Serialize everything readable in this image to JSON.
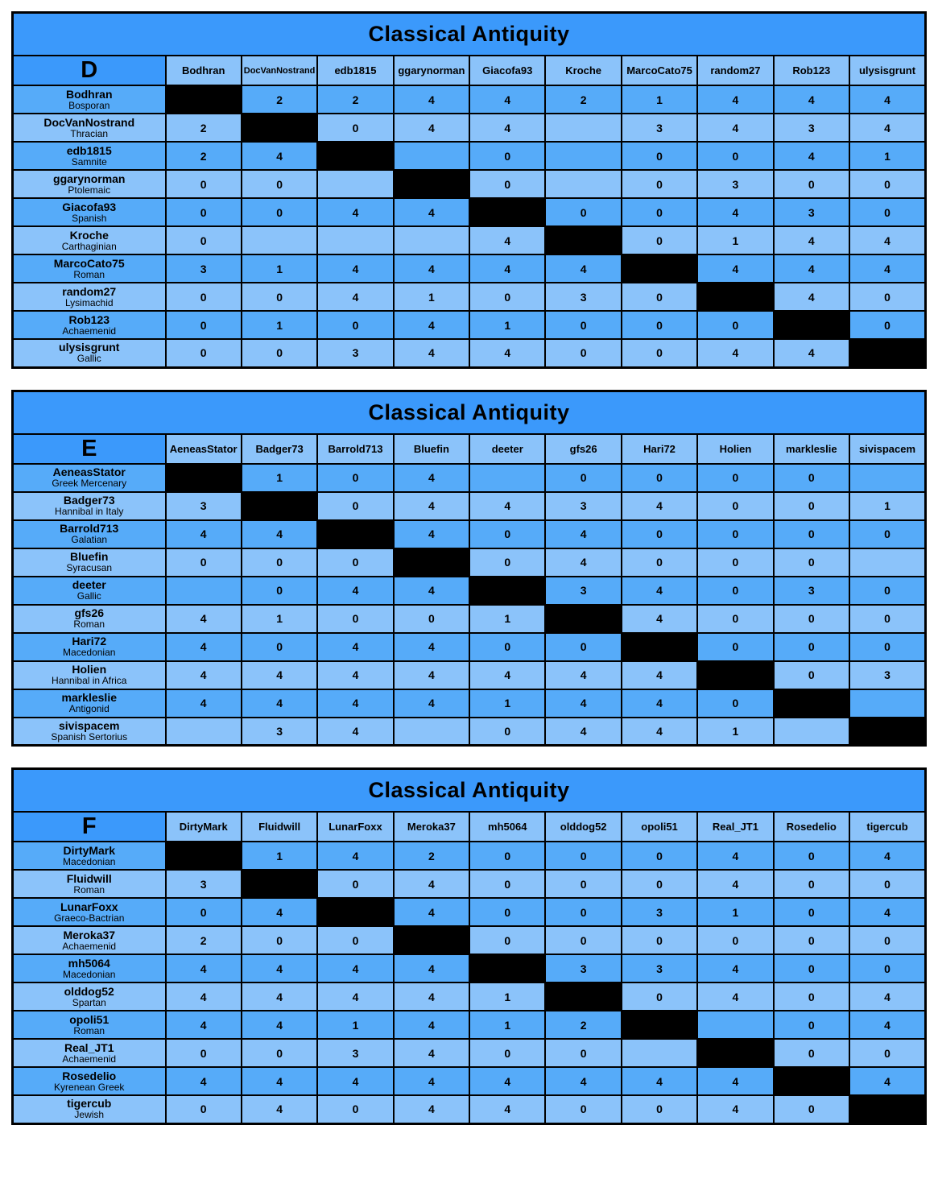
{
  "tables": [
    {
      "title": "Classical Antiquity",
      "group": "D",
      "columns": [
        "Bodhran",
        "DocVanNostrand",
        "edb1815",
        "ggarynorman",
        "Giacofa93",
        "Kroche",
        "MarcoCato75",
        "random27",
        "Rob123",
        "ulysisgrunt"
      ],
      "rows": [
        {
          "player": "Bodhran",
          "faction": "Bosporan",
          "scores": [
            null,
            "2",
            "2",
            "4",
            "4",
            "2",
            "1",
            "4",
            "4",
            "4"
          ]
        },
        {
          "player": "DocVanNostrand",
          "faction": "Thracian",
          "scores": [
            "2",
            null,
            "0",
            "4",
            "4",
            "",
            "3",
            "4",
            "3",
            "4"
          ]
        },
        {
          "player": "edb1815",
          "faction": "Samnite",
          "scores": [
            "2",
            "4",
            null,
            "",
            "0",
            "",
            "0",
            "0",
            "4",
            "1"
          ]
        },
        {
          "player": "ggarynorman",
          "faction": "Ptolemaic",
          "scores": [
            "0",
            "0",
            "",
            null,
            "0",
            "",
            "0",
            "3",
            "0",
            "0"
          ]
        },
        {
          "player": "Giacofa93",
          "faction": "Spanish",
          "scores": [
            "0",
            "0",
            "4",
            "4",
            null,
            "0",
            "0",
            "4",
            "3",
            "0"
          ]
        },
        {
          "player": "Kroche",
          "faction": "Carthaginian",
          "scores": [
            "0",
            "",
            "",
            "",
            "4",
            null,
            "0",
            "1",
            "4",
            "4"
          ]
        },
        {
          "player": "MarcoCato75",
          "faction": "Roman",
          "scores": [
            "3",
            "1",
            "4",
            "4",
            "4",
            "4",
            null,
            "4",
            "4",
            "4"
          ]
        },
        {
          "player": "random27",
          "faction": "Lysimachid",
          "scores": [
            "0",
            "0",
            "4",
            "1",
            "0",
            "3",
            "0",
            null,
            "4",
            "0"
          ]
        },
        {
          "player": "Rob123",
          "faction": "Achaemenid",
          "scores": [
            "0",
            "1",
            "0",
            "4",
            "1",
            "0",
            "0",
            "0",
            null,
            "0"
          ]
        },
        {
          "player": "ulysisgrunt",
          "faction": "Gallic",
          "scores": [
            "0",
            "0",
            "3",
            "4",
            "4",
            "0",
            "0",
            "4",
            "4",
            null
          ]
        }
      ]
    },
    {
      "title": "Classical Antiquity",
      "group": "E",
      "columns": [
        "AeneasStator",
        "Badger73",
        "Barrold713",
        "Bluefin",
        "deeter",
        "gfs26",
        "Hari72",
        "Holien",
        "markleslie",
        "sivispacem"
      ],
      "rows": [
        {
          "player": "AeneasStator",
          "faction": "Greek Mercenary",
          "scores": [
            null,
            "1",
            "0",
            "4",
            "",
            "0",
            "0",
            "0",
            "0",
            ""
          ]
        },
        {
          "player": "Badger73",
          "faction": "Hannibal in Italy",
          "scores": [
            "3",
            null,
            "0",
            "4",
            "4",
            "3",
            "4",
            "0",
            "0",
            "1"
          ]
        },
        {
          "player": "Barrold713",
          "faction": "Galatian",
          "scores": [
            "4",
            "4",
            null,
            "4",
            "0",
            "4",
            "0",
            "0",
            "0",
            "0"
          ]
        },
        {
          "player": "Bluefin",
          "faction": "Syracusan",
          "scores": [
            "0",
            "0",
            "0",
            null,
            "0",
            "4",
            "0",
            "0",
            "0",
            ""
          ]
        },
        {
          "player": "deeter",
          "faction": "Gallic",
          "scores": [
            "",
            "0",
            "4",
            "4",
            null,
            "3",
            "4",
            "0",
            "3",
            "0"
          ]
        },
        {
          "player": "gfs26",
          "faction": "Roman",
          "scores": [
            "4",
            "1",
            "0",
            "0",
            "1",
            null,
            "4",
            "0",
            "0",
            "0"
          ]
        },
        {
          "player": "Hari72",
          "faction": "Macedonian",
          "scores": [
            "4",
            "0",
            "4",
            "4",
            "0",
            "0",
            null,
            "0",
            "0",
            "0"
          ]
        },
        {
          "player": "Holien",
          "faction": "Hannibal in Africa",
          "scores": [
            "4",
            "4",
            "4",
            "4",
            "4",
            "4",
            "4",
            null,
            "0",
            "3"
          ]
        },
        {
          "player": "markleslie",
          "faction": "Antigonid",
          "scores": [
            "4",
            "4",
            "4",
            "4",
            "1",
            "4",
            "4",
            "0",
            null,
            ""
          ]
        },
        {
          "player": "sivispacem",
          "faction": "Spanish Sertorius",
          "scores": [
            "",
            "3",
            "4",
            "",
            "0",
            "4",
            "4",
            "1",
            "",
            null
          ]
        }
      ]
    },
    {
      "title": "Classical Antiquity",
      "group": "F",
      "columns": [
        "DirtyMark",
        "Fluidwill",
        "LunarFoxx",
        "Meroka37",
        "mh5064",
        "olddog52",
        "opoli51",
        "Real_JT1",
        "Rosedelio",
        "tigercub"
      ],
      "rows": [
        {
          "player": "DirtyMark",
          "faction": "Macedonian",
          "scores": [
            null,
            "1",
            "4",
            "2",
            "0",
            "0",
            "0",
            "4",
            "0",
            "4"
          ]
        },
        {
          "player": "Fluidwill",
          "faction": "Roman",
          "scores": [
            "3",
            null,
            "0",
            "4",
            "0",
            "0",
            "0",
            "4",
            "0",
            "0"
          ]
        },
        {
          "player": "LunarFoxx",
          "faction": "Graeco-Bactrian",
          "scores": [
            "0",
            "4",
            null,
            "4",
            "0",
            "0",
            "3",
            "1",
            "0",
            "4"
          ]
        },
        {
          "player": "Meroka37",
          "faction": "Achaemenid",
          "scores": [
            "2",
            "0",
            "0",
            null,
            "0",
            "0",
            "0",
            "0",
            "0",
            "0"
          ]
        },
        {
          "player": "mh5064",
          "faction": "Macedonian",
          "scores": [
            "4",
            "4",
            "4",
            "4",
            null,
            "3",
            "3",
            "4",
            "0",
            "0"
          ]
        },
        {
          "player": "olddog52",
          "faction": "Spartan",
          "scores": [
            "4",
            "4",
            "4",
            "4",
            "1",
            null,
            "0",
            "4",
            "0",
            "4"
          ]
        },
        {
          "player": "opoli51",
          "faction": "Roman",
          "scores": [
            "4",
            "4",
            "1",
            "4",
            "1",
            "2",
            null,
            "",
            "0",
            "4"
          ]
        },
        {
          "player": "Real_JT1",
          "faction": "Achaemenid",
          "scores": [
            "0",
            "0",
            "3",
            "4",
            "0",
            "0",
            "",
            null,
            "0",
            "0"
          ]
        },
        {
          "player": "Rosedelio",
          "faction": "Kyrenean Greek",
          "scores": [
            "4",
            "4",
            "4",
            "4",
            "4",
            "4",
            "4",
            "4",
            null,
            "4"
          ]
        },
        {
          "player": "tigercub",
          "faction": "Jewish",
          "scores": [
            "0",
            "4",
            "0",
            "4",
            "4",
            "0",
            "0",
            "4",
            "0",
            null
          ]
        }
      ]
    }
  ]
}
